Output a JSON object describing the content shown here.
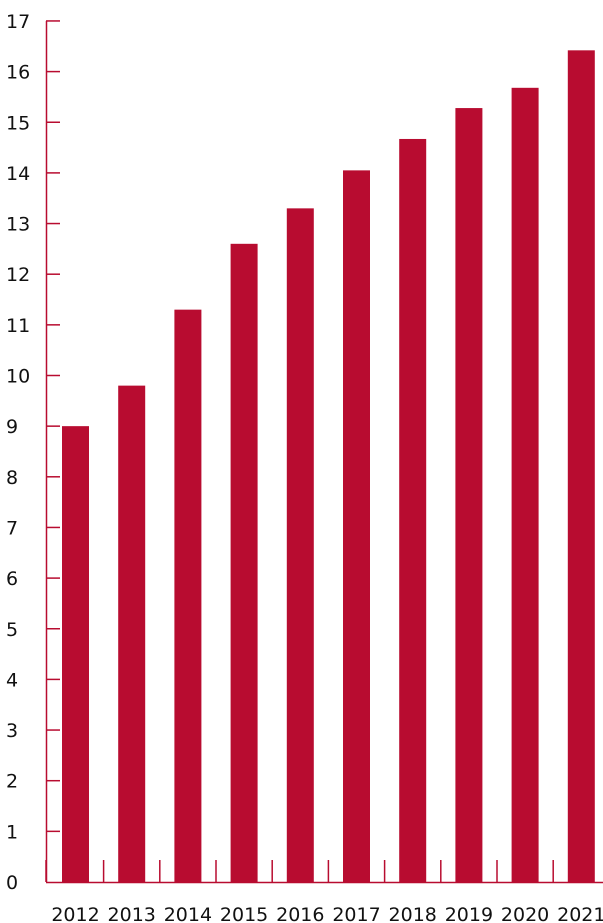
{
  "chart_data": {
    "type": "bar",
    "categories": [
      "2012",
      "2013",
      "2014",
      "2015",
      "2016",
      "2017",
      "2018",
      "2019",
      "2020",
      "2021"
    ],
    "values": [
      9.0,
      9.8,
      11.3,
      12.6,
      13.3,
      14.05,
      14.67,
      15.28,
      15.68,
      16.42
    ],
    "y_ticks": [
      "0",
      "1",
      "2",
      "3",
      "4",
      "5",
      "6",
      "7",
      "8",
      "9",
      "10",
      "11",
      "12",
      "13",
      "14",
      "15",
      "16",
      "17"
    ],
    "ylim": [
      0,
      17
    ],
    "title": "",
    "xlabel": "",
    "ylabel": "",
    "grid": false,
    "legend": "none",
    "bar_color": "#b80c30",
    "axis_color": "#b80c30"
  }
}
